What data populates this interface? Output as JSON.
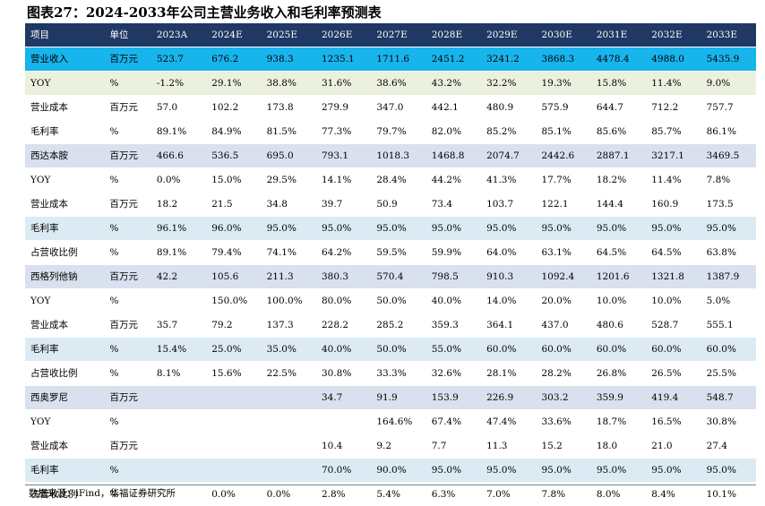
{
  "title": "图表27：2024-2033年公司主营业务收入和毛利率预测表",
  "headers": [
    "项目",
    "单位",
    "2023A",
    "2024E",
    "2025E",
    "2026E",
    "2027E",
    "2028E",
    "2029E",
    "2030E",
    "2031E",
    "2032E",
    "2033E"
  ],
  "rows": [
    {
      "style": "hl-cyan",
      "cells": [
        "营业收入",
        "百万元",
        "523.7",
        "676.2",
        "938.3",
        "1235.1",
        "1711.6",
        "2451.2",
        "3241.2",
        "3868.3",
        "4478.4",
        "4988.0",
        "5435.9"
      ]
    },
    {
      "style": "hl-olive",
      "cells": [
        "YOY",
        "%",
        "-1.2%",
        "29.1%",
        "38.8%",
        "31.6%",
        "38.6%",
        "43.2%",
        "32.2%",
        "19.3%",
        "15.8%",
        "11.4%",
        "9.0%"
      ]
    },
    {
      "style": "",
      "cells": [
        "营业成本",
        "百万元",
        "57.0",
        "102.2",
        "173.8",
        "279.9",
        "347.0",
        "442.1",
        "480.9",
        "575.9",
        "644.7",
        "712.2",
        "757.7"
      ]
    },
    {
      "style": "",
      "cells": [
        "毛利率",
        "%",
        "89.1%",
        "84.9%",
        "81.5%",
        "77.3%",
        "79.7%",
        "82.0%",
        "85.2%",
        "85.1%",
        "85.6%",
        "85.7%",
        "86.1%"
      ]
    },
    {
      "style": "hl-grey",
      "cells": [
        "西达本胺",
        "百万元",
        "466.6",
        "536.5",
        "695.0",
        "793.1",
        "1018.3",
        "1468.8",
        "2074.7",
        "2442.6",
        "2887.1",
        "3217.1",
        "3469.5"
      ]
    },
    {
      "style": "",
      "cells": [
        "YOY",
        "%",
        "0.0%",
        "15.0%",
        "29.5%",
        "14.1%",
        "28.4%",
        "44.2%",
        "41.3%",
        "17.7%",
        "18.2%",
        "11.4%",
        "7.8%"
      ]
    },
    {
      "style": "",
      "cells": [
        "营业成本",
        "百万元",
        "18.2",
        "21.5",
        "34.8",
        "39.7",
        "50.9",
        "73.4",
        "103.7",
        "122.1",
        "144.4",
        "160.9",
        "173.5"
      ]
    },
    {
      "style": "hl-blue",
      "cells": [
        "毛利率",
        "%",
        "96.1%",
        "96.0%",
        "95.0%",
        "95.0%",
        "95.0%",
        "95.0%",
        "95.0%",
        "95.0%",
        "95.0%",
        "95.0%",
        "95.0%"
      ]
    },
    {
      "style": "",
      "cells": [
        "占营收比例",
        "%",
        "89.1%",
        "79.4%",
        "74.1%",
        "64.2%",
        "59.5%",
        "59.9%",
        "64.0%",
        "63.1%",
        "64.5%",
        "64.5%",
        "63.8%"
      ]
    },
    {
      "style": "hl-grey",
      "cells": [
        "西格列他钠",
        "百万元",
        "42.2",
        "105.6",
        "211.3",
        "380.3",
        "570.4",
        "798.5",
        "910.3",
        "1092.4",
        "1201.6",
        "1321.8",
        "1387.9"
      ]
    },
    {
      "style": "",
      "cells": [
        "YOY",
        "%",
        "",
        "150.0%",
        "100.0%",
        "80.0%",
        "50.0%",
        "40.0%",
        "14.0%",
        "20.0%",
        "10.0%",
        "10.0%",
        "5.0%"
      ]
    },
    {
      "style": "",
      "cells": [
        "营业成本",
        "百万元",
        "35.7",
        "79.2",
        "137.3",
        "228.2",
        "285.2",
        "359.3",
        "364.1",
        "437.0",
        "480.6",
        "528.7",
        "555.1"
      ]
    },
    {
      "style": "hl-blue",
      "cells": [
        "毛利率",
        "%",
        "15.4%",
        "25.0%",
        "35.0%",
        "40.0%",
        "50.0%",
        "55.0%",
        "60.0%",
        "60.0%",
        "60.0%",
        "60.0%",
        "60.0%"
      ]
    },
    {
      "style": "",
      "cells": [
        "占营收比例",
        "%",
        "8.1%",
        "15.6%",
        "22.5%",
        "30.8%",
        "33.3%",
        "32.6%",
        "28.1%",
        "28.2%",
        "26.8%",
        "26.5%",
        "25.5%"
      ]
    },
    {
      "style": "hl-grey",
      "cells": [
        "西奥罗尼",
        "百万元",
        "",
        "",
        "",
        "34.7",
        "91.9",
        "153.9",
        "226.9",
        "303.2",
        "359.9",
        "419.4",
        "548.7"
      ]
    },
    {
      "style": "",
      "cells": [
        "YOY",
        "%",
        "",
        "",
        "",
        "",
        "164.6%",
        "67.4%",
        "47.4%",
        "33.6%",
        "18.7%",
        "16.5%",
        "30.8%"
      ]
    },
    {
      "style": "",
      "cells": [
        "营业成本",
        "百万元",
        "",
        "",
        "",
        "10.4",
        "9.2",
        "7.7",
        "11.3",
        "15.2",
        "18.0",
        "21.0",
        "27.4"
      ]
    },
    {
      "style": "hl-blue",
      "cells": [
        "毛利率",
        "%",
        "",
        "",
        "",
        "70.0%",
        "90.0%",
        "95.0%",
        "95.0%",
        "95.0%",
        "95.0%",
        "95.0%",
        "95.0%"
      ]
    },
    {
      "style": "",
      "cells": [
        "占营收比例",
        "%",
        "",
        "0.0%",
        "0.0%",
        "2.8%",
        "5.4%",
        "6.3%",
        "7.0%",
        "7.8%",
        "8.0%",
        "8.4%",
        "10.1%"
      ]
    }
  ],
  "source": "数据来源：iFind，华福证券研究所"
}
